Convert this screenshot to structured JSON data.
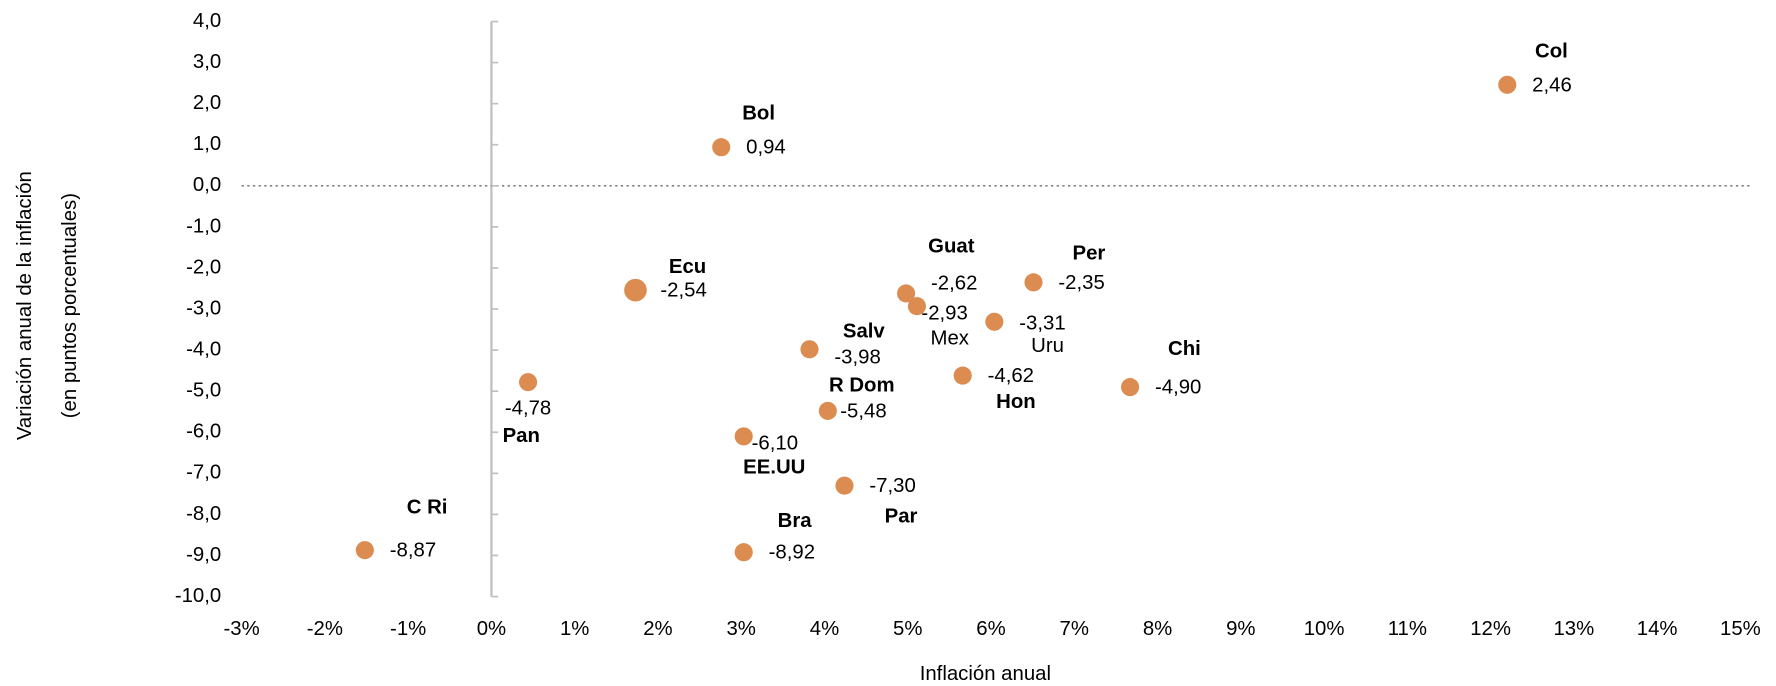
{
  "chart_data": {
    "type": "scatter",
    "x_label": "Inflación anual",
    "y_label": [
      "Variación anual de la inflación",
      "(en puntos porcentuales)"
    ],
    "color": "#dc8c50",
    "labels": [
      "Col",
      "Bol",
      "Ecu",
      "Guat",
      "Mex",
      "Per",
      "Uru",
      "Salv",
      "Hon",
      "Chi",
      "Pan",
      "R Dom",
      "EE.UU",
      "Par",
      "C Ri",
      "Bra"
    ],
    "x": [
      12.2,
      2.76,
      1.73,
      4.98,
      5.11,
      6.51,
      6.04,
      3.82,
      5.66,
      7.67,
      0.44,
      4.04,
      3.03,
      4.24,
      -1.52,
      3.03
    ],
    "values": [
      2.46,
      0.94,
      -2.54,
      -2.62,
      -2.93,
      -2.35,
      -3.31,
      -3.98,
      -4.62,
      -4.9,
      -4.78,
      -5.48,
      -6.1,
      -7.3,
      -8.87,
      -8.92
    ],
    "value_labels": [
      "2,46",
      "0,94",
      "-2,54",
      "-2,62",
      "-2,93",
      "-2,35",
      "-3,31",
      "-3,98",
      "-4,62",
      "-4,90",
      "-4,78",
      "-5,48",
      "-6,10",
      "-7,30",
      "-8,87",
      "-8,92"
    ],
    "xlim": [
      -3,
      15
    ],
    "ylim": [
      -10,
      4
    ],
    "xticks": [
      {
        "value": -3,
        "label": "-3%"
      },
      {
        "value": -2,
        "label": "-2%"
      },
      {
        "value": -1,
        "label": "-1%"
      },
      {
        "value": 0,
        "label": "0%"
      },
      {
        "value": 1,
        "label": "1%"
      },
      {
        "value": 2,
        "label": "2%"
      },
      {
        "value": 3,
        "label": "3%"
      },
      {
        "value": 4,
        "label": "4%"
      },
      {
        "value": 5,
        "label": "5%"
      },
      {
        "value": 6,
        "label": "6%"
      },
      {
        "value": 7,
        "label": "7%"
      },
      {
        "value": 8,
        "label": "8%"
      },
      {
        "value": 9,
        "label": "9%"
      },
      {
        "value": 10,
        "label": "10%"
      },
      {
        "value": 11,
        "label": "11%"
      },
      {
        "value": 12,
        "label": "12%"
      },
      {
        "value": 13,
        "label": "13%"
      },
      {
        "value": 14,
        "label": "14%"
      },
      {
        "value": 15,
        "label": "15%"
      }
    ],
    "yticks": [
      {
        "value": 4,
        "label": "4,0"
      },
      {
        "value": 3,
        "label": "3,0"
      },
      {
        "value": 2,
        "label": "2,0"
      },
      {
        "value": 1,
        "label": "1,0"
      },
      {
        "value": 0,
        "label": "0,0"
      },
      {
        "value": -1,
        "label": "-1,0"
      },
      {
        "value": -2,
        "label": "-2,0"
      },
      {
        "value": -3,
        "label": "-3,0"
      },
      {
        "value": -4,
        "label": "-4,0"
      },
      {
        "value": -5,
        "label": "-5,0"
      },
      {
        "value": -6,
        "label": "-6,0"
      },
      {
        "value": -7,
        "label": "-7,0"
      },
      {
        "value": -8,
        "label": "-8,0"
      },
      {
        "value": -9,
        "label": "-9,0"
      },
      {
        "value": -10,
        "label": "-10,0"
      }
    ]
  }
}
